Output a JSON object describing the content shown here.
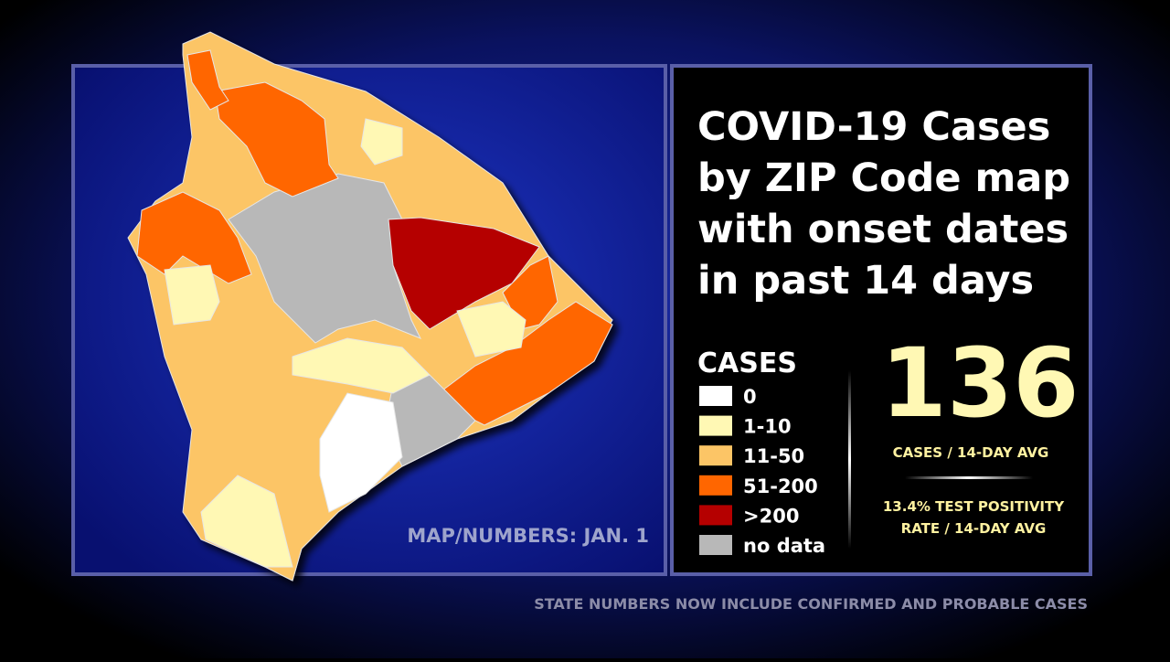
{
  "title_lines": [
    "COVID-19 Cases",
    "by ZIP Code map",
    "with onset dates",
    "in past 14 days"
  ],
  "legend": {
    "title": "CASES",
    "items": [
      {
        "label": "0",
        "color": "#ffffff"
      },
      {
        "label": "1-10",
        "color": "#fff8b4"
      },
      {
        "label": "11-50",
        "color": "#fcc566"
      },
      {
        "label": "51-200",
        "color": "#ff6600"
      },
      {
        "label": ">200",
        "color": "#b50000"
      },
      {
        "label": "no data",
        "color": "#b8b8b8"
      }
    ]
  },
  "stat": {
    "value": "136",
    "label": "CASES / 14-DAY AVG"
  },
  "positivity": [
    "13.4% TEST POSITIVITY",
    "RATE / 14-DAY AVG"
  ],
  "credit": "MAP/NUMBERS: JAN. 1",
  "footer": "STATE NUMBERS NOW INCLUDE CONFIRMED AND PROBABLE CASES"
}
